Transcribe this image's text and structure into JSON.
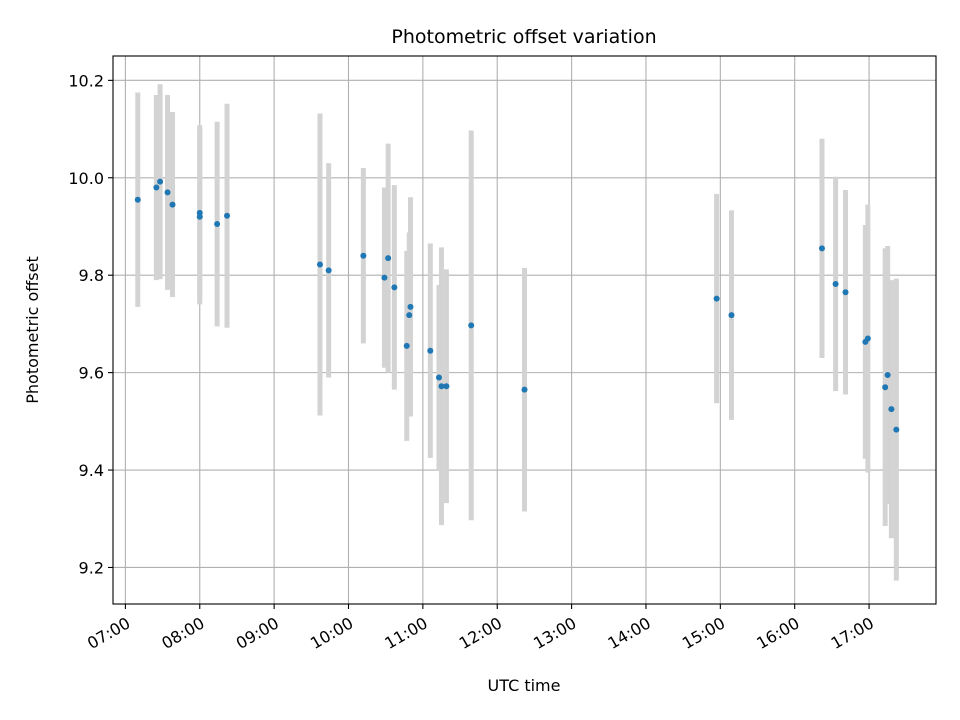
{
  "chart_data": {
    "type": "scatter",
    "title": "Photometric offset variation",
    "xlabel": "UTC time",
    "ylabel": "Photometric offset",
    "xlim": [
      "06:50",
      "17:54"
    ],
    "ylim": [
      9.125,
      10.25
    ],
    "x_ticks": [
      "07:00",
      "08:00",
      "09:00",
      "10:00",
      "11:00",
      "12:00",
      "13:00",
      "14:00",
      "15:00",
      "16:00",
      "17:00"
    ],
    "y_ticks": [
      9.2,
      9.4,
      9.6,
      9.8,
      10.0,
      10.2
    ],
    "y_tick_labels": [
      "9.2",
      "9.4",
      "9.6",
      "9.8",
      "10.0",
      "10.2"
    ],
    "grid": true,
    "marker_color": "#1f77b4",
    "errorbar_color": "#d3d3d3",
    "points": [
      {
        "time": "07:10",
        "y": 9.955,
        "err": 0.22
      },
      {
        "time": "07:25",
        "y": 9.98,
        "err": 0.19
      },
      {
        "time": "07:28",
        "y": 9.992,
        "err": 0.2
      },
      {
        "time": "07:34",
        "y": 9.97,
        "err": 0.2
      },
      {
        "time": "07:38",
        "y": 9.945,
        "err": 0.19
      },
      {
        "time": "08:00",
        "y": 9.928,
        "err": 0.18
      },
      {
        "time": "08:00",
        "y": 9.92,
        "err": 0.18
      },
      {
        "time": "08:14",
        "y": 9.905,
        "err": 0.21
      },
      {
        "time": "08:22",
        "y": 9.922,
        "err": 0.23
      },
      {
        "time": "09:37",
        "y": 9.822,
        "err": 0.31
      },
      {
        "time": "09:44",
        "y": 9.81,
        "err": 0.22
      },
      {
        "time": "10:12",
        "y": 9.84,
        "err": 0.18
      },
      {
        "time": "10:29",
        "y": 9.795,
        "err": 0.185
      },
      {
        "time": "10:32",
        "y": 9.835,
        "err": 0.235
      },
      {
        "time": "10:37",
        "y": 9.775,
        "err": 0.21
      },
      {
        "time": "10:47",
        "y": 9.655,
        "err": 0.195
      },
      {
        "time": "10:49",
        "y": 9.718,
        "err": 0.17
      },
      {
        "time": "10:50",
        "y": 9.735,
        "err": 0.225
      },
      {
        "time": "11:06",
        "y": 9.645,
        "err": 0.22
      },
      {
        "time": "11:13",
        "y": 9.59,
        "err": 0.19
      },
      {
        "time": "11:15",
        "y": 9.572,
        "err": 0.285
      },
      {
        "time": "11:19",
        "y": 9.572,
        "err": 0.24
      },
      {
        "time": "11:39",
        "y": 9.697,
        "err": 0.4
      },
      {
        "time": "12:22",
        "y": 9.565,
        "err": 0.25
      },
      {
        "time": "14:57",
        "y": 9.752,
        "err": 0.215
      },
      {
        "time": "15:09",
        "y": 9.718,
        "err": 0.215
      },
      {
        "time": "16:22",
        "y": 9.855,
        "err": 0.225
      },
      {
        "time": "16:33",
        "y": 9.782,
        "err": 0.22
      },
      {
        "time": "16:41",
        "y": 9.765,
        "err": 0.21
      },
      {
        "time": "16:57",
        "y": 9.663,
        "err": 0.24
      },
      {
        "time": "16:59",
        "y": 9.67,
        "err": 0.275
      },
      {
        "time": "17:13",
        "y": 9.57,
        "err": 0.285
      },
      {
        "time": "17:15",
        "y": 9.595,
        "err": 0.265
      },
      {
        "time": "17:18",
        "y": 9.525,
        "err": 0.265
      },
      {
        "time": "17:22",
        "y": 9.483,
        "err": 0.31
      }
    ]
  }
}
